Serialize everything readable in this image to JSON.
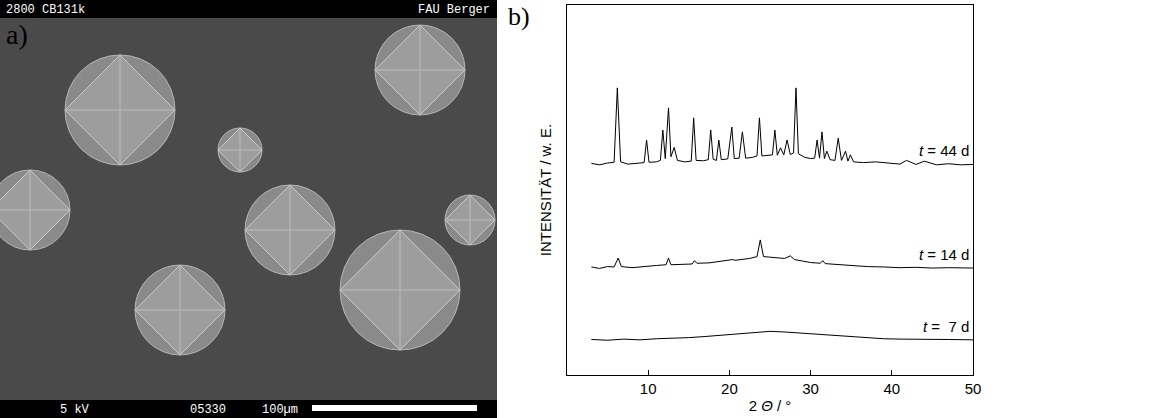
{
  "panels": {
    "a": {
      "type": "image",
      "panel": "a)",
      "header_left": "2800 CB131k",
      "header_right": "FAU Berger",
      "footer_left": "5 kV",
      "footer_center": "05330",
      "scale_bar": "100µm"
    }
  },
  "chart_data": {
    "type": "line",
    "panel": "b)",
    "x_label": "2 Θ / °",
    "y_label": "INTENSITÄT / w. E.",
    "xlim": [
      0,
      50
    ],
    "xticks": [
      10,
      20,
      30,
      40,
      50
    ],
    "ylim": [
      0,
      100
    ],
    "tick_labels": "x",
    "grid": false,
    "series": [
      {
        "name": "t = 44 d",
        "color": "#000000",
        "x": [
          3,
          4,
          5,
          5.8,
          6.2,
          6.6,
          7.5,
          8.5,
          9.5,
          9.8,
          10.1,
          11,
          11.5,
          11.8,
          12.1,
          12.5,
          12.8,
          13.2,
          13.6,
          14.5,
          15.3,
          15.6,
          15.9,
          16.8,
          17.4,
          17.7,
          18,
          18.4,
          18.7,
          19,
          19.8,
          20.3,
          20.6,
          21.2,
          21.6,
          22,
          22.8,
          23.4,
          23.7,
          24,
          24.6,
          25.3,
          25.6,
          25.9,
          26.3,
          26.7,
          27.1,
          27.5,
          27.9,
          28.2,
          28.5,
          29.3,
          30,
          30.5,
          30.8,
          31.1,
          31.4,
          31.7,
          32,
          32.4,
          33,
          33.4,
          33.8,
          34.3,
          34.6,
          34.9,
          35.3,
          36.5,
          38,
          39.5,
          41,
          41.8,
          43,
          44,
          45.5,
          47,
          48.5,
          50
        ],
        "values": [
          57.2,
          56.8,
          57.3,
          57.5,
          77.6,
          57.6,
          57.0,
          57.2,
          57.4,
          63.5,
          57.5,
          57.6,
          58,
          66.2,
          58.5,
          72.2,
          59,
          61.5,
          58,
          57.6,
          57.8,
          69.5,
          58,
          57.9,
          58.2,
          66.2,
          58.3,
          58,
          63.5,
          58.2,
          58.4,
          67,
          58.5,
          58.6,
          65.7,
          58.6,
          58.8,
          59.2,
          69.5,
          59.2,
          59.4,
          59.5,
          66.2,
          59.4,
          61.4,
          59.5,
          63.5,
          59.6,
          60,
          77.6,
          59.8,
          58.8,
          58.5,
          58.6,
          63.5,
          58.6,
          65.7,
          58.5,
          60.5,
          58.2,
          58,
          64,
          58,
          60.5,
          57.8,
          59.5,
          57.6,
          57.4,
          57.6,
          57.2,
          57,
          58,
          56.9,
          57.8,
          56.8,
          57.1,
          56.8,
          56.9
        ]
      },
      {
        "name": "t = 14 d",
        "color": "#000000",
        "x": [
          3,
          4,
          5,
          5.8,
          6.3,
          6.7,
          8,
          9.5,
          11,
          12.2,
          12.5,
          12.8,
          14,
          15.4,
          15.7,
          16,
          17.5,
          18.5,
          19.5,
          20.4,
          20.7,
          21.5,
          22.5,
          23.4,
          23.8,
          24.2,
          25,
          26,
          26.8,
          27.5,
          28,
          29,
          30,
          31.2,
          31.5,
          31.8,
          33,
          34,
          35,
          37,
          39,
          41,
          43,
          45,
          47,
          50
        ],
        "values": [
          29.2,
          28.8,
          29.3,
          29.2,
          31.6,
          29.3,
          29.0,
          29.4,
          29.6,
          29.8,
          31.6,
          29.8,
          29.9,
          30.0,
          30.9,
          30.2,
          30.3,
          30.6,
          30.8,
          31.2,
          31.0,
          31.2,
          31.5,
          32,
          36.5,
          32,
          31.8,
          31.6,
          31.5,
          32.2,
          31.2,
          30.8,
          30.4,
          30.2,
          30.9,
          30.1,
          29.9,
          29.7,
          29.5,
          29.3,
          29.2,
          29.0,
          29.1,
          28.9,
          29.0,
          28.9
        ]
      },
      {
        "name": "t =  7 d",
        "color": "#000000",
        "x": [
          3,
          5,
          7,
          9,
          11,
          13,
          15,
          17,
          19,
          21,
          23,
          25,
          27,
          29,
          31,
          33,
          35,
          37,
          39,
          41,
          43,
          45,
          47,
          50
        ],
        "values": [
          9.6,
          9.4,
          9.7,
          9.5,
          9.8,
          9.9,
          10.1,
          10.4,
          10.8,
          11.2,
          11.5,
          11.8,
          11.6,
          11.3,
          10.9,
          10.5,
          10.2,
          10.0,
          9.8,
          9.7,
          9.6,
          9.5,
          9.6,
          9.5
        ]
      }
    ]
  }
}
